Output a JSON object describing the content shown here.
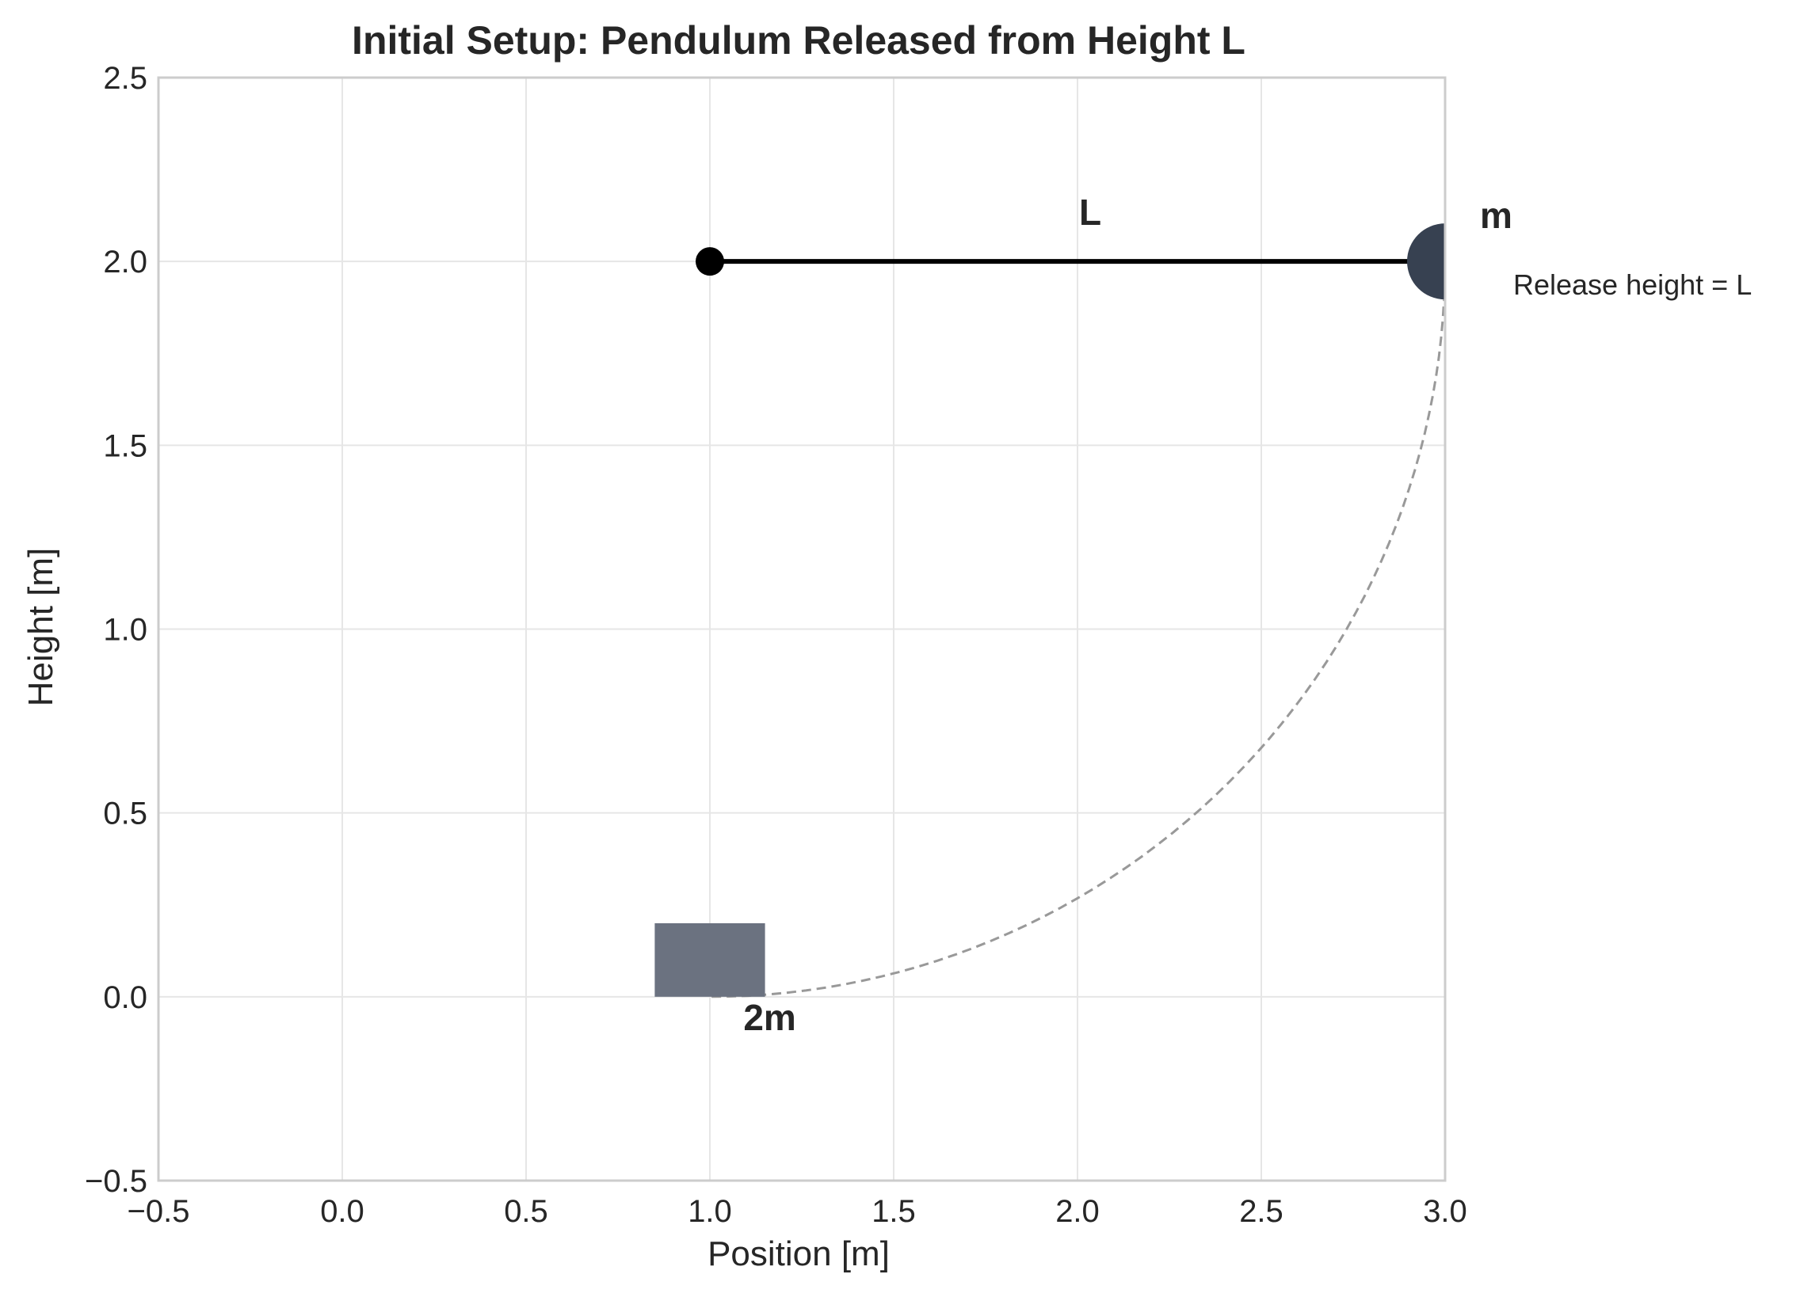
{
  "chart_data": {
    "type": "diagram",
    "title": "Initial Setup: Pendulum Released from Height L",
    "xlabel": "Position [m]",
    "ylabel": "Height [m]",
    "xlim": [
      -0.5,
      3.0
    ],
    "ylim": [
      -0.5,
      2.5
    ],
    "x_ticks": [
      -0.5,
      0.0,
      0.5,
      1.0,
      1.5,
      2.0,
      2.5,
      3.0
    ],
    "y_ticks": [
      -0.5,
      0.0,
      0.5,
      1.0,
      1.5,
      2.0,
      2.5
    ],
    "x_tick_labels": [
      "−0.5",
      "0.0",
      "0.5",
      "1.0",
      "1.5",
      "2.0",
      "2.5",
      "3.0"
    ],
    "y_tick_labels": [
      "−0.5",
      "0.0",
      "0.5",
      "1.0",
      "1.5",
      "2.0",
      "2.5"
    ],
    "grid": true,
    "pivot": {
      "x": 1.0,
      "y": 2.0
    },
    "bob": {
      "x": 3.0,
      "y": 2.0,
      "label": "m",
      "color": "#374151"
    },
    "rod": {
      "from": [
        1.0,
        2.0
      ],
      "to": [
        3.0,
        2.0
      ],
      "label": "L",
      "color": "#000000"
    },
    "block": {
      "x": 0.85,
      "y": 0.0,
      "width": 0.3,
      "height": 0.2,
      "label": "2m",
      "color": "#6b7280"
    },
    "swing_path": {
      "center": [
        1.0,
        2.0
      ],
      "radius": 2.0,
      "from_angle_deg": 0,
      "to_angle_deg": -90,
      "style": "dashed",
      "color": "#999999"
    },
    "annotations": {
      "rod_label": "L",
      "bob_label": "m",
      "block_label": "2m",
      "release_note": "Release height = L"
    }
  }
}
